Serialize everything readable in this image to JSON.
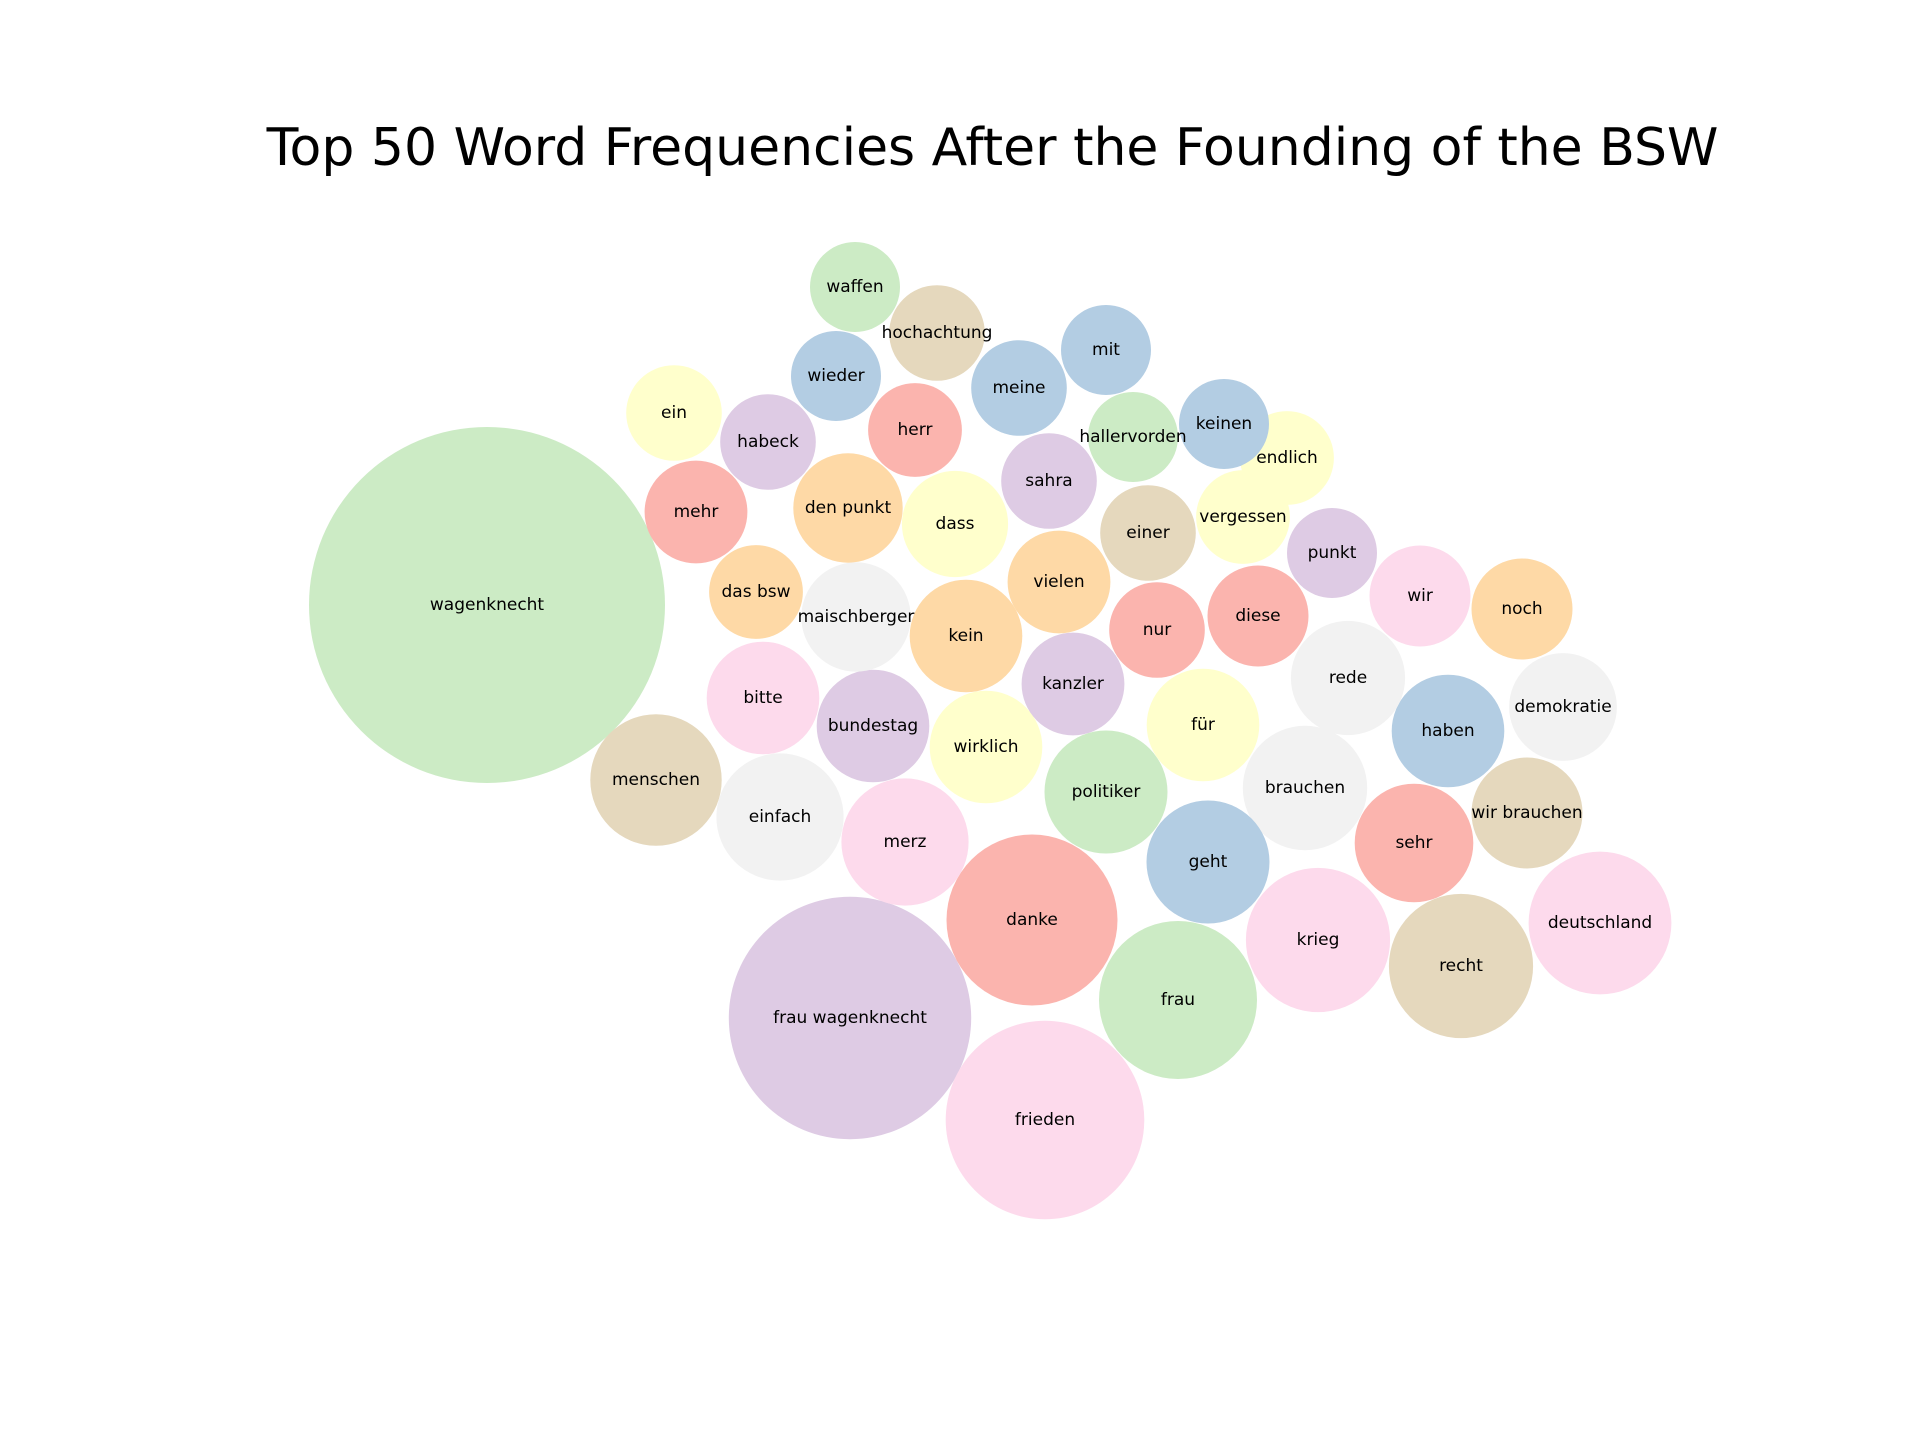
{
  "chart_data": {
    "type": "bubble",
    "title": "Top 50 Word Frequencies After the Founding of the BSW",
    "words": [
      {
        "label": "wagenknecht",
        "value": 36,
        "color": "#ccebc5"
      },
      {
        "label": "frau wagenknecht",
        "value": 16.7,
        "color": "#decbe4"
      },
      {
        "label": "frieden",
        "value": 11.2,
        "color": "#fddaec"
      },
      {
        "label": "danke",
        "value": 8.3,
        "color": "#fbb4ae"
      },
      {
        "label": "frau",
        "value": 7.1,
        "color": "#ccebc5"
      },
      {
        "label": "recht",
        "value": 5.9,
        "color": "#e5d8bd"
      },
      {
        "label": "krieg",
        "value": 5.9,
        "color": "#fddaec"
      },
      {
        "label": "deutschland",
        "value": 5.8,
        "color": "#fddaec"
      },
      {
        "label": "menschen",
        "value": 4.9,
        "color": "#e5d8bd"
      },
      {
        "label": "einfach",
        "value": 4.6,
        "color": "#f2f2f2"
      },
      {
        "label": "merz",
        "value": 4.6,
        "color": "#fddaec"
      },
      {
        "label": "brauchen",
        "value": 4.4,
        "color": "#f2f2f2"
      },
      {
        "label": "politiker",
        "value": 4.3,
        "color": "#ccebc5"
      },
      {
        "label": "geht",
        "value": 4.3,
        "color": "#b3cde3"
      },
      {
        "label": "sehr",
        "value": 4.0,
        "color": "#fbb4ae"
      },
      {
        "label": "haben",
        "value": 3.6,
        "color": "#b3cde3"
      },
      {
        "label": "wirklich",
        "value": 3.6,
        "color": "#ffffcc"
      },
      {
        "label": "für",
        "value": 3.6,
        "color": "#ffffcc"
      },
      {
        "label": "kein",
        "value": 3.6,
        "color": "#fed9a6"
      },
      {
        "label": "bundestag",
        "value": 3.6,
        "color": "#decbe4"
      },
      {
        "label": "maischberger",
        "value": 3.4,
        "color": "#f2f2f2"
      },
      {
        "label": "rede",
        "value": 3.7,
        "color": "#f2f2f2"
      },
      {
        "label": "demokratie",
        "value": 3.3,
        "color": "#f2f2f2"
      },
      {
        "label": "wir brauchen",
        "value": 3.5,
        "color": "#e5d8bd"
      },
      {
        "label": "den punkt",
        "value": 3.4,
        "color": "#fed9a6"
      },
      {
        "label": "dass",
        "value": 3.2,
        "color": "#ffffcc"
      },
      {
        "label": "vielen",
        "value": 3.0,
        "color": "#fed9a6"
      },
      {
        "label": "kanzler",
        "value": 3.0,
        "color": "#decbe4"
      },
      {
        "label": "bitte",
        "value": 3.6,
        "color": "#fddaec"
      },
      {
        "label": "diese",
        "value": 2.9,
        "color": "#fbb4ae"
      },
      {
        "label": "noch",
        "value": 2.9,
        "color": "#fed9a6"
      },
      {
        "label": "wir",
        "value": 2.9,
        "color": "#fddaec"
      },
      {
        "label": "mehr",
        "value": 3.0,
        "color": "#fbb4ae"
      },
      {
        "label": "sahra",
        "value": 2.6,
        "color": "#decbe4"
      },
      {
        "label": "einer",
        "value": 2.6,
        "color": "#e5d8bd"
      },
      {
        "label": "nur",
        "value": 2.6,
        "color": "#fbb4ae"
      },
      {
        "label": "hochachtung",
        "value": 2.6,
        "color": "#e5d8bd"
      },
      {
        "label": "meine",
        "value": 2.6,
        "color": "#b3cde3"
      },
      {
        "label": "habeck",
        "value": 2.6,
        "color": "#decbe4"
      },
      {
        "label": "herr",
        "value": 2.5,
        "color": "#fbb4ae"
      },
      {
        "label": "vergessen",
        "value": 2.5,
        "color": "#ffffcc"
      },
      {
        "label": "das bsw",
        "value": 2.5,
        "color": "#fed9a6"
      },
      {
        "label": "endlich",
        "value": 2.5,
        "color": "#ffffcc"
      },
      {
        "label": "keinen",
        "value": 2.3,
        "color": "#b3cde3"
      },
      {
        "label": "hallervorden",
        "value": 2.3,
        "color": "#ccebc5"
      },
      {
        "label": "wieder",
        "value": 2.3,
        "color": "#b3cde3"
      },
      {
        "label": "mit",
        "value": 2.3,
        "color": "#b3cde3"
      },
      {
        "label": "ein",
        "value": 2.6,
        "color": "#ffffcc"
      },
      {
        "label": "waffen",
        "value": 2.3,
        "color": "#ccebc5"
      },
      {
        "label": "punkt",
        "value": 2.3,
        "color": "#decbe4"
      }
    ]
  }
}
